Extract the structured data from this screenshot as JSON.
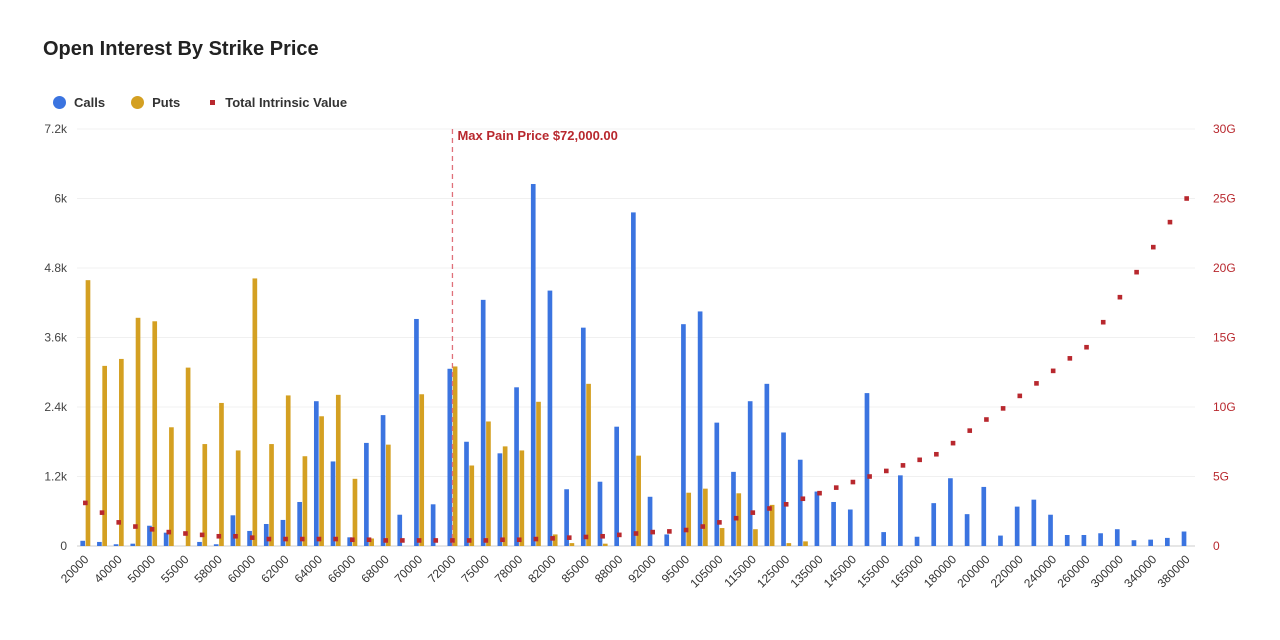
{
  "chart_data": {
    "type": "bar",
    "title": "Open Interest By Strike Price",
    "categories": [
      "20000",
      "30000",
      "40000",
      "45000",
      "50000",
      "52000",
      "55000",
      "56000",
      "58000",
      "59000",
      "60000",
      "61000",
      "62000",
      "63000",
      "64000",
      "65000",
      "66000",
      "67000",
      "68000",
      "69000",
      "70000",
      "71000",
      "72000",
      "74000",
      "75000",
      "76000",
      "78000",
      "80000",
      "82000",
      "84000",
      "85000",
      "86000",
      "88000",
      "90000",
      "92000",
      "94000",
      "95000",
      "100000",
      "105000",
      "110000",
      "115000",
      "120000",
      "125000",
      "130000",
      "135000",
      "140000",
      "145000",
      "150000",
      "155000",
      "160000",
      "165000",
      "170000",
      "180000",
      "190000",
      "200000",
      "210000",
      "220000",
      "230000",
      "240000",
      "250000",
      "260000",
      "280000",
      "300000",
      "320000",
      "340000",
      "360000",
      "380000"
    ],
    "tick_labels": [
      "20000",
      "40000",
      "50000",
      "55000",
      "58000",
      "60000",
      "62000",
      "64000",
      "66000",
      "68000",
      "70000",
      "72000",
      "75000",
      "78000",
      "82000",
      "85000",
      "88000",
      "92000",
      "95000",
      "105000",
      "115000",
      "125000",
      "135000",
      "145000",
      "155000",
      "165000",
      "180000",
      "200000",
      "220000",
      "240000",
      "260000",
      "300000",
      "340000",
      "380000"
    ],
    "series": [
      {
        "name": "Calls",
        "kind": "bar",
        "axis": "left",
        "color": "#3b74e0",
        "values": [
          90,
          70,
          30,
          40,
          350,
          230,
          0,
          70,
          30,
          530,
          260,
          380,
          450,
          760,
          2500,
          1460,
          150,
          1780,
          2260,
          540,
          3920,
          720,
          3060,
          1800,
          4250,
          1600,
          2740,
          6250,
          4410,
          980,
          3770,
          1110,
          2060,
          5760,
          850,
          200,
          3830,
          4050,
          2130,
          1280,
          2500,
          2800,
          1960,
          1490,
          940,
          760,
          630,
          2640,
          240,
          1220,
          160,
          740,
          1170,
          550,
          1020,
          180,
          680,
          800,
          540,
          190,
          190,
          220,
          290,
          100,
          110,
          140,
          250
        ]
      },
      {
        "name": "Puts",
        "kind": "bar",
        "axis": "left",
        "color": "#d4a022",
        "values": [
          4590,
          3110,
          3230,
          3940,
          3880,
          2050,
          3080,
          1760,
          2470,
          1650,
          4620,
          1760,
          2600,
          1550,
          2240,
          2610,
          1160,
          130,
          1750,
          0,
          2620,
          0,
          3100,
          1390,
          2150,
          1720,
          1650,
          2490,
          200,
          50,
          2800,
          40,
          0,
          1560,
          0,
          0,
          920,
          990,
          310,
          910,
          290,
          710,
          50,
          80,
          0,
          0,
          0,
          0,
          0,
          0,
          0,
          0,
          0,
          0,
          0,
          0,
          0,
          0,
          0,
          0,
          0,
          0,
          0,
          0,
          0,
          0,
          0
        ]
      },
      {
        "name": "Total Intrinsic Value",
        "kind": "scatter",
        "axis": "right",
        "color": "#b8282e",
        "values": [
          3.1,
          2.4,
          1.7,
          1.4,
          1.2,
          1.0,
          0.9,
          0.8,
          0.7,
          0.7,
          0.6,
          0.5,
          0.5,
          0.5,
          0.5,
          0.5,
          0.45,
          0.45,
          0.4,
          0.4,
          0.4,
          0.4,
          0.4,
          0.4,
          0.4,
          0.45,
          0.45,
          0.5,
          0.55,
          0.6,
          0.65,
          0.7,
          0.8,
          0.9,
          1.0,
          1.05,
          1.15,
          1.4,
          1.7,
          2.0,
          2.4,
          2.7,
          3.0,
          3.4,
          3.8,
          4.2,
          4.6,
          5.0,
          5.4,
          5.8,
          6.2,
          6.6,
          7.4,
          8.3,
          9.1,
          9.9,
          10.8,
          11.7,
          12.6,
          13.5,
          14.3,
          16.1,
          17.9,
          19.7,
          21.5,
          23.3,
          25.0
        ]
      }
    ],
    "y_left": {
      "ylim": [
        0,
        7200
      ],
      "ticks": [
        "0",
        "1.2k",
        "2.4k",
        "3.6k",
        "4.8k",
        "6k",
        "7.2k"
      ]
    },
    "y_right": {
      "ylim": [
        0,
        30
      ],
      "ticks": [
        "0",
        "5G",
        "10G",
        "15G",
        "20G",
        "25G",
        "30G"
      ]
    },
    "annotation": {
      "label": "Max Pain Price $72,000.00",
      "category": "72000",
      "style": "dashed-vertical-line"
    },
    "legend": {
      "position": "top-left",
      "items": [
        {
          "label": "Calls",
          "marker": "dot",
          "color": "#3b74e0"
        },
        {
          "label": "Puts",
          "marker": "dot",
          "color": "#d4a022"
        },
        {
          "label": "Total Intrinsic Value",
          "marker": "square",
          "color": "#b8282e"
        }
      ]
    },
    "grid": true
  }
}
